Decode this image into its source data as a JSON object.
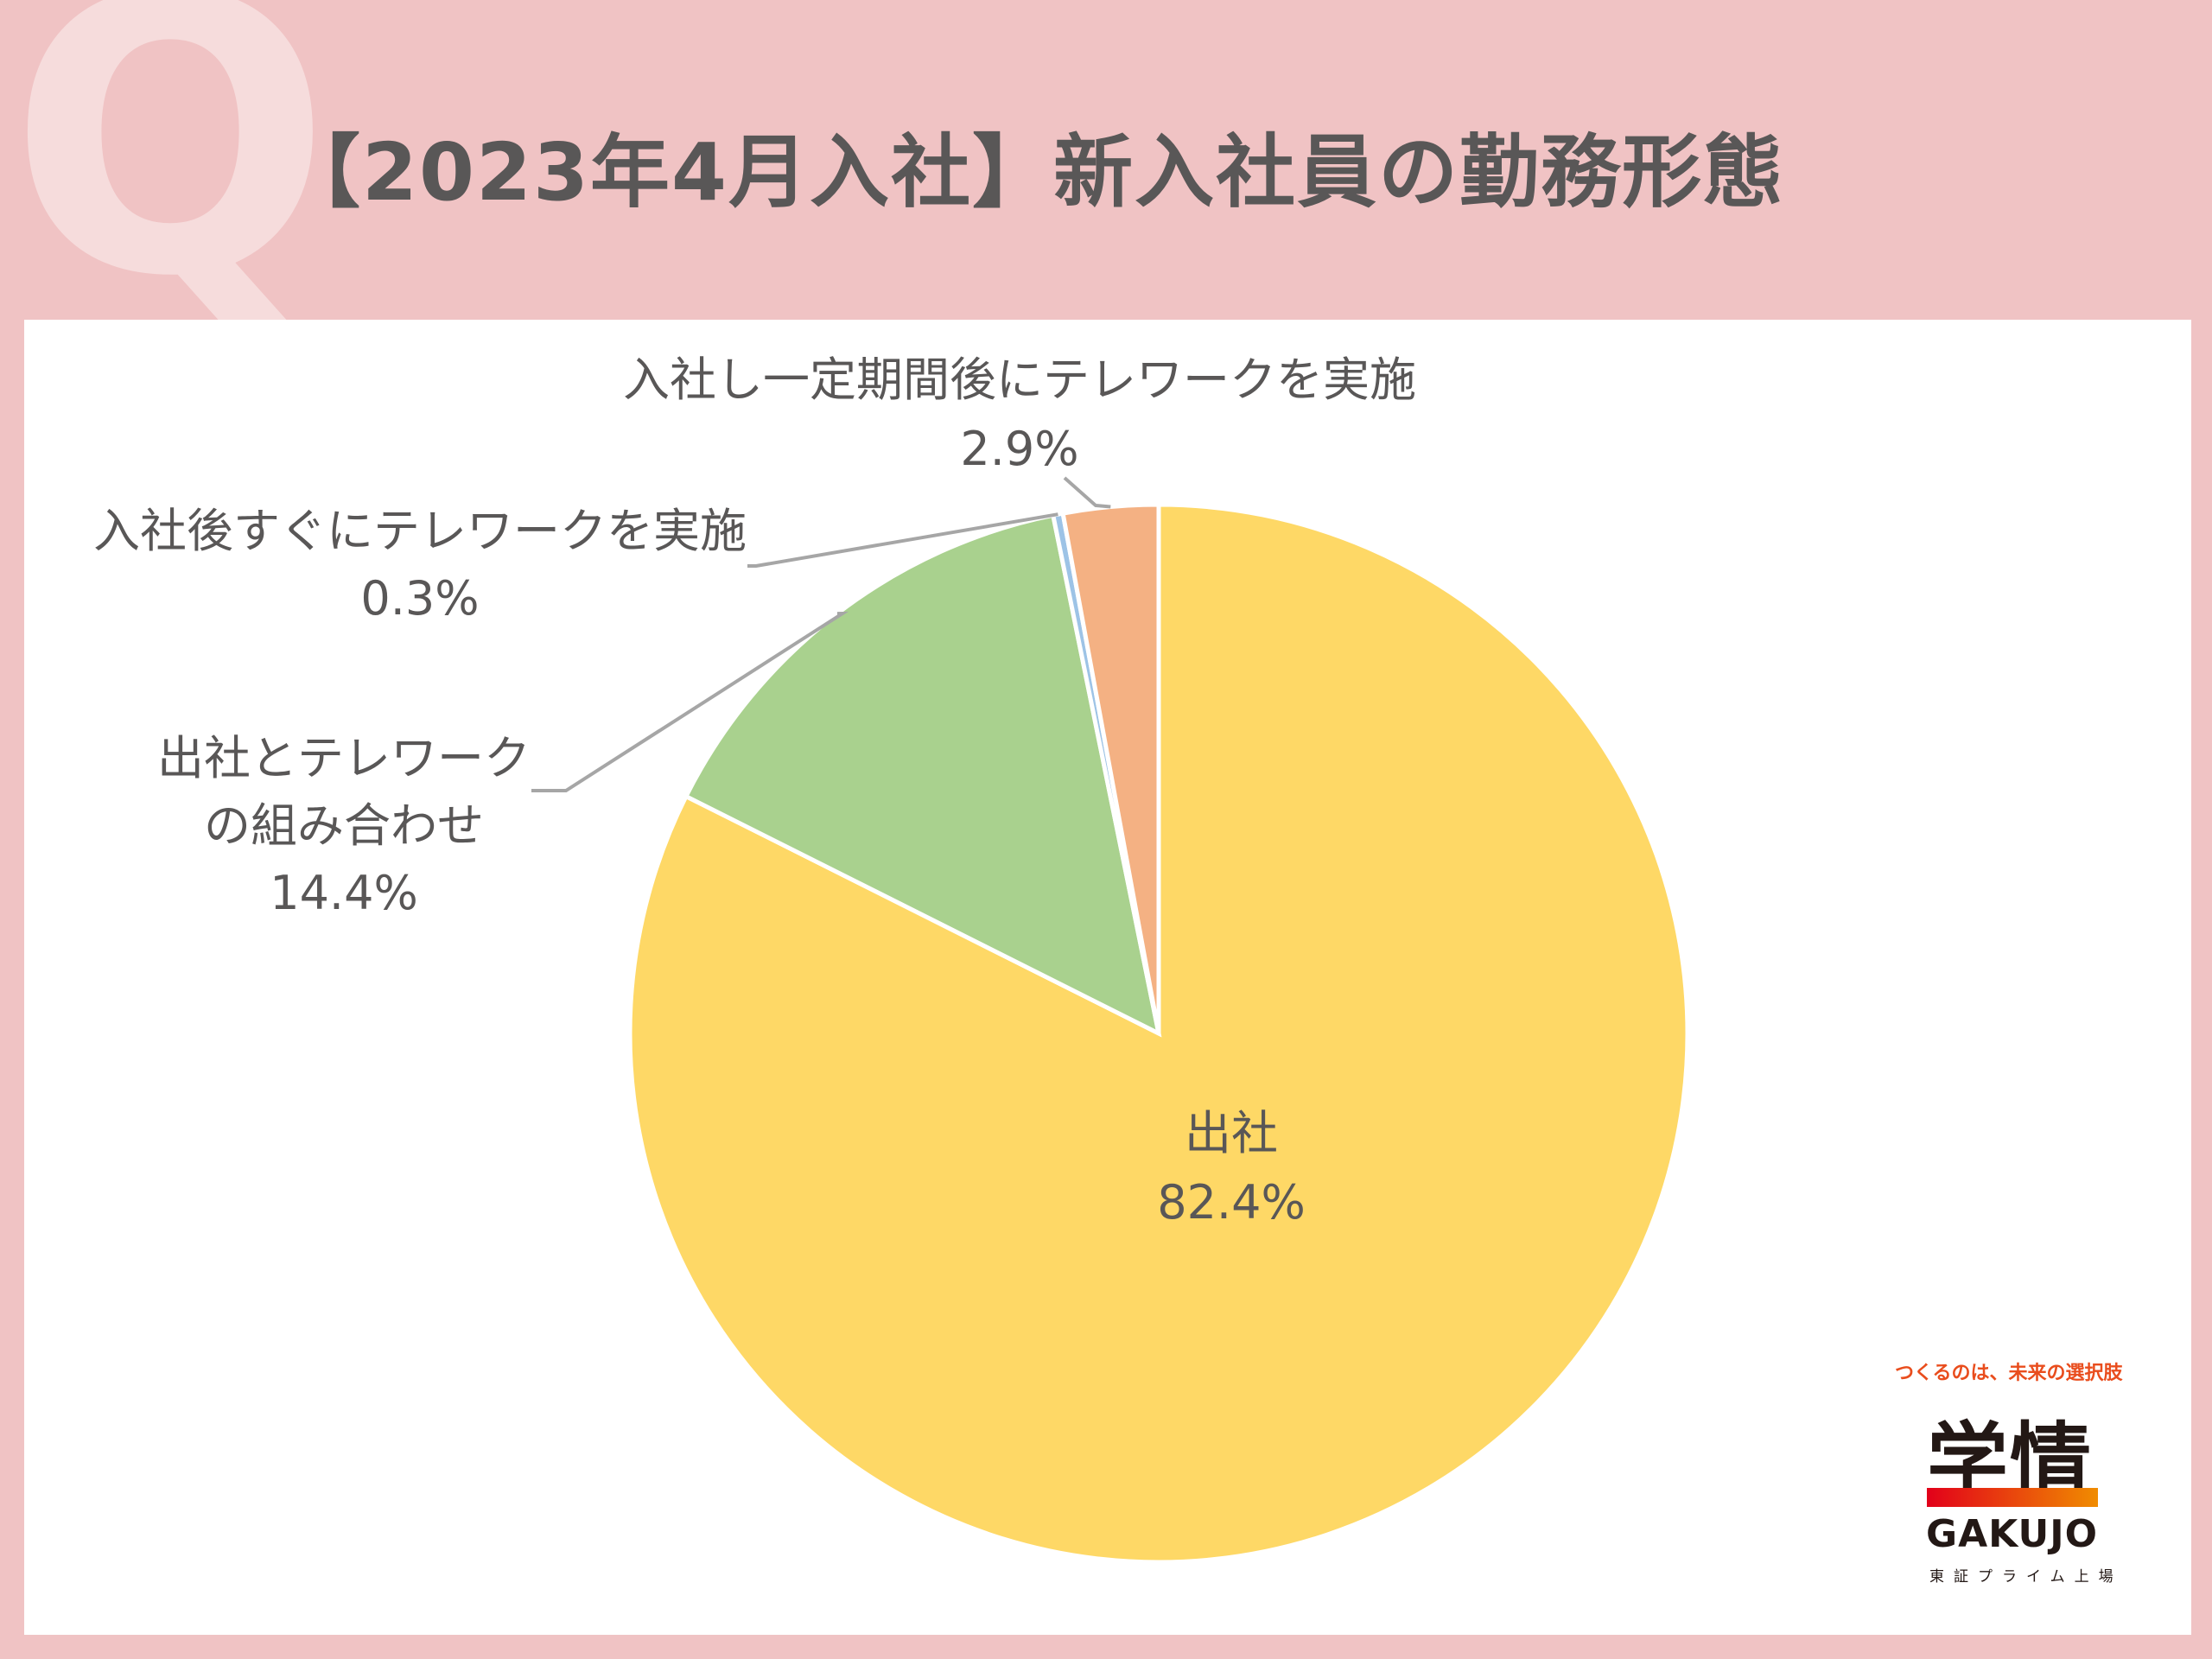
{
  "header": {
    "q_mark": "Q",
    "title": "【2023年4月入社】新入社員の勤務形態"
  },
  "chart_data": {
    "type": "pie",
    "title": "【2023年4月入社】新入社員の勤務形態",
    "slices": [
      {
        "label": "出社",
        "value": 82.4,
        "value_label": "82.4%",
        "color": "#fed866"
      },
      {
        "label": "出社とテレワークの組み合わせ",
        "label_lines": [
          "出社とテレワーク",
          "の組み合わせ"
        ],
        "value": 14.4,
        "value_label": "14.4%",
        "color": "#a9d18e"
      },
      {
        "label": "入社後すぐにテレワークを実施",
        "value": 0.3,
        "value_label": "0.3%",
        "color": "#9dc3e6"
      },
      {
        "label": "入社し一定期間後にテレワークを実施",
        "value": 2.9,
        "value_label": "2.9%",
        "color": "#f4b183"
      }
    ],
    "start": "12 o'clock",
    "direction": "clockwise"
  },
  "brand": {
    "tagline": "つくるのは、未来の選択肢",
    "name_jp": "学情",
    "name_en": "GAKUJO",
    "subtitle": "東証プライム上場"
  }
}
